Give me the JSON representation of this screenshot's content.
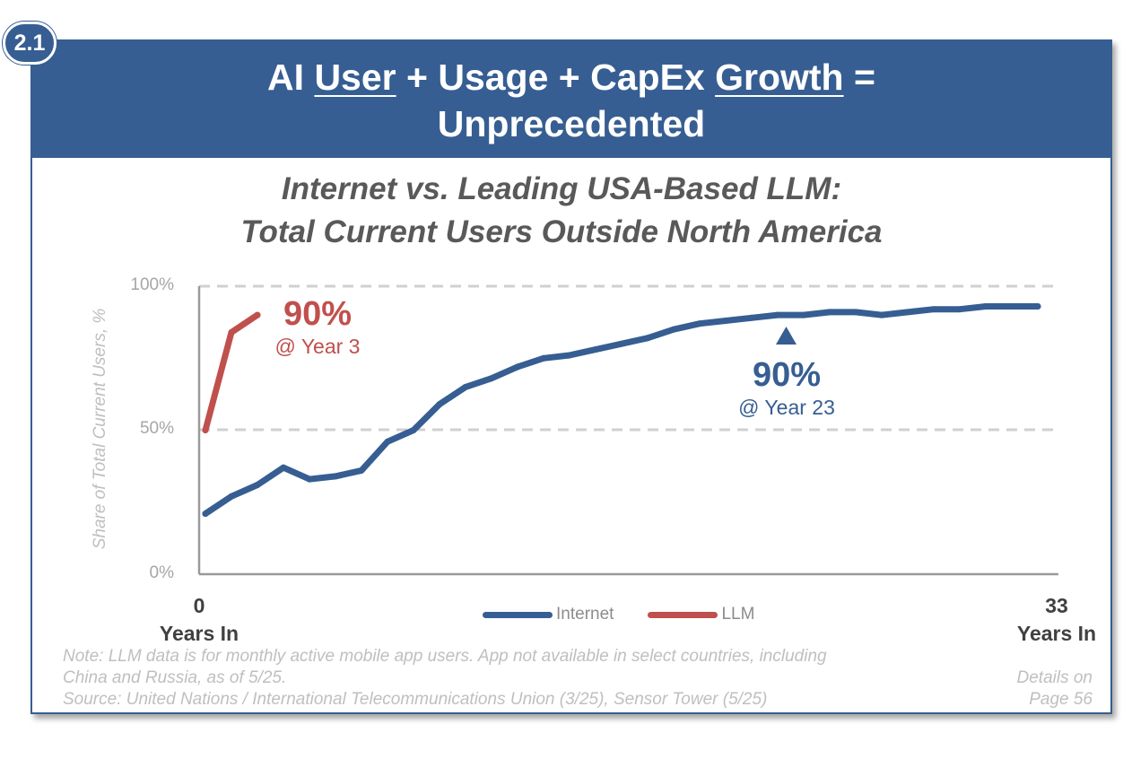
{
  "badge": "2.1",
  "header": {
    "line1_part1": "AI ",
    "line1_u1": "User",
    "line1_part2": " + Usage + CapEx ",
    "line1_u2": "Growth",
    "line1_part3": " =",
    "line2": "Unprecedented"
  },
  "colors": {
    "header_bg": "#365e92",
    "internet": "#365e92",
    "llm": "#c0504d"
  },
  "chart_data": {
    "type": "line",
    "title": "Internet vs. Leading USA-Based LLM:",
    "subtitle": "Total Current Users Outside North America",
    "ylabel": "Share of Total Current Users, %",
    "xlabel": "Years In",
    "x_tick_labels": [
      "0",
      "33"
    ],
    "y_tick_labels": [
      "100%",
      "50%",
      "0%"
    ],
    "xlim": [
      0,
      33
    ],
    "ylim": [
      0,
      100
    ],
    "grid": "dashed at 50% and 100%",
    "legend_placement": "bottom-center",
    "series": [
      {
        "name": "Internet",
        "color": "#365e92",
        "x": [
          0,
          1,
          2,
          3,
          4,
          5,
          6,
          7,
          8,
          9,
          10,
          11,
          12,
          13,
          14,
          15,
          16,
          17,
          18,
          19,
          20,
          21,
          22,
          23,
          24,
          25,
          26,
          27,
          28,
          29,
          30,
          31,
          32
        ],
        "y": [
          21,
          27,
          31,
          37,
          33,
          34,
          36,
          46,
          50,
          59,
          65,
          68,
          72,
          75,
          76,
          78,
          80,
          82,
          85,
          87,
          88,
          89,
          90,
          90,
          91,
          91,
          90,
          91,
          92,
          92,
          93,
          93,
          93
        ]
      },
      {
        "name": "LLM",
        "color": "#c0504d",
        "x": [
          0,
          1,
          2
        ],
        "y": [
          50,
          84,
          90
        ]
      }
    ],
    "annotations": [
      {
        "series": "LLM",
        "value": "90%",
        "text": "@ Year 3"
      },
      {
        "series": "Internet",
        "value": "90%",
        "text": "@ Year 23"
      }
    ]
  },
  "footer": {
    "note_line1": "Note: LLM data is for monthly active mobile app users. App not available in select countries, including",
    "note_line2": "China and Russia, as of 5/25.",
    "note_line3": "Source: United Nations / International Telecommunications Union (3/25), Sensor Tower (5/25)",
    "details_line1": "Details on",
    "details_line2": "Page 56"
  }
}
